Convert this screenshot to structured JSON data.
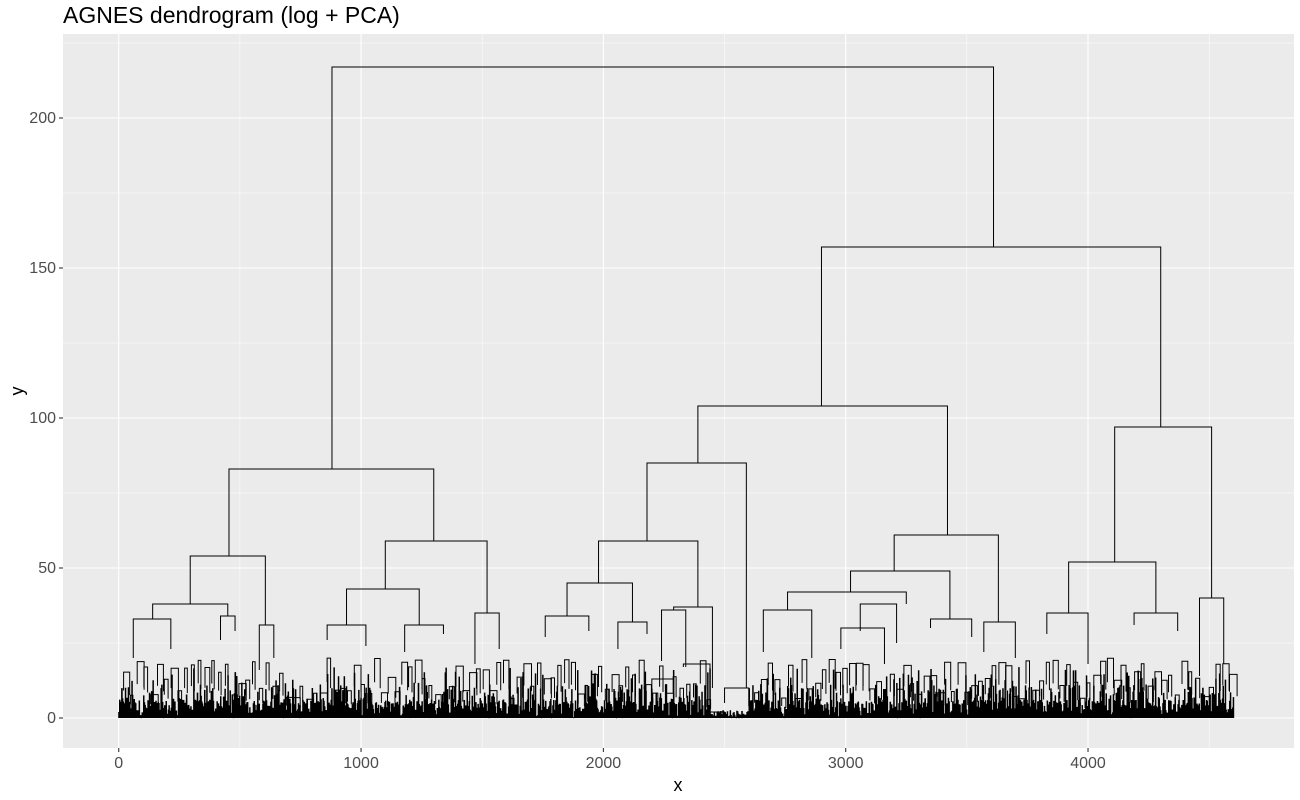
{
  "chart_data": {
    "type": "dendrogram",
    "title": "AGNES dendrogram (log + PCA)",
    "xlabel": "x",
    "ylabel": "y",
    "xlim": [
      -230,
      4850
    ],
    "ylim": [
      -10,
      228
    ],
    "x_ticks": [
      0,
      1000,
      2000,
      3000,
      4000
    ],
    "x_tick_labels": [
      "0",
      "1000",
      "2000",
      "3000",
      "4000"
    ],
    "y_ticks": [
      0,
      50,
      100,
      150,
      200
    ],
    "y_tick_labels": [
      "0",
      "50",
      "100",
      "150",
      "200"
    ],
    "n_leaves": 4600,
    "grid": true,
    "background": "#ebebeb",
    "line_color": "#000000",
    "links": [
      {
        "x1": 880,
        "x2": 3610,
        "y": 217,
        "y1": 83,
        "y2": 157
      },
      {
        "x1": 2900,
        "x2": 4300,
        "y": 157,
        "y1": 104,
        "y2": 97
      },
      {
        "x1": 2390,
        "x2": 3420,
        "y": 104,
        "y1": 85,
        "y2": 61
      },
      {
        "x1": 455,
        "x2": 1300,
        "y": 83,
        "y1": 54,
        "y2": 59
      },
      {
        "x1": 2180,
        "x2": 2590,
        "y": 85,
        "y1": 59,
        "y2": 10
      },
      {
        "x1": 4110,
        "x2": 4510,
        "y": 97,
        "y1": 52,
        "y2": 40
      },
      {
        "x1": 3200,
        "x2": 3630,
        "y": 61,
        "y1": 49,
        "y2": 32
      },
      {
        "x1": 1100,
        "x2": 1520,
        "y": 59,
        "y1": 43,
        "y2": 35
      },
      {
        "x1": 295,
        "x2": 605,
        "y": 54,
        "y1": 38,
        "y2": 31
      },
      {
        "x1": 1980,
        "x2": 2390,
        "y": 59,
        "y1": 45,
        "y2": 37
      },
      {
        "x1": 3920,
        "x2": 4280,
        "y": 52,
        "y1": 35,
        "y2": 35
      },
      {
        "x1": 3020,
        "x2": 3430,
        "y": 49,
        "y1": 42,
        "y2": 33
      },
      {
        "x1": 940,
        "x2": 1240,
        "y": 43,
        "y1": 31,
        "y2": 31
      },
      {
        "x1": 140,
        "x2": 450,
        "y": 38,
        "y1": 33,
        "y2": 34
      },
      {
        "x1": 1850,
        "x2": 2120,
        "y": 45,
        "y1": 34,
        "y2": 32
      },
      {
        "x1": 2760,
        "x2": 3250,
        "y": 42,
        "y1": 36,
        "y2": 38
      },
      {
        "x1": 3350,
        "x2": 3520,
        "y": 33,
        "y1": 30,
        "y2": 27
      },
      {
        "x1": 3570,
        "x2": 3700,
        "y": 32,
        "y1": 22,
        "y2": 20
      },
      {
        "x1": 4190,
        "x2": 4370,
        "y": 35,
        "y1": 31,
        "y2": 29
      },
      {
        "x1": 3830,
        "x2": 4000,
        "y": 35,
        "y1": 28,
        "y2": 18
      },
      {
        "x1": 4460,
        "x2": 4560,
        "y": 40,
        "y1": 14,
        "y2": 18
      },
      {
        "x1": 2290,
        "x2": 2450,
        "y": 37,
        "y1": 36,
        "y2": 10
      },
      {
        "x1": 2240,
        "x2": 2340,
        "y": 36,
        "y1": 19,
        "y2": 17
      },
      {
        "x1": 2330,
        "x2": 2440,
        "y": 18,
        "y1": 17,
        "y2": 11
      },
      {
        "x1": 2200,
        "x2": 2290,
        "y": 13,
        "y1": 9,
        "y2": 9
      },
      {
        "x1": 1470,
        "x2": 1570,
        "y": 35,
        "y1": 18,
        "y2": 23
      },
      {
        "x1": 1180,
        "x2": 1340,
        "y": 31,
        "y1": 22,
        "y2": 28
      },
      {
        "x1": 860,
        "x2": 1020,
        "y": 31,
        "y1": 26,
        "y2": 24
      },
      {
        "x1": 60,
        "x2": 215,
        "y": 33,
        "y1": 20,
        "y2": 23
      },
      {
        "x1": 420,
        "x2": 480,
        "y": 34,
        "y1": 26,
        "y2": 29
      },
      {
        "x1": 580,
        "x2": 640,
        "y": 31,
        "y1": 16,
        "y2": 20
      },
      {
        "x1": 1760,
        "x2": 1940,
        "y": 34,
        "y1": 27,
        "y2": 29
      },
      {
        "x1": 2060,
        "x2": 2180,
        "y": 32,
        "y1": 23,
        "y2": 28
      },
      {
        "x1": 2660,
        "x2": 2860,
        "y": 36,
        "y1": 22,
        "y2": 20
      },
      {
        "x1": 3060,
        "x2": 3210,
        "y": 38,
        "y1": 29,
        "y2": 25
      },
      {
        "x1": 2980,
        "x2": 3160,
        "y": 30,
        "y1": 23,
        "y2": 18
      },
      {
        "x1": 2500,
        "x2": 2600,
        "y": 10,
        "y1": 5,
        "y2": 4
      },
      {
        "x1": 2420,
        "x2": 2500,
        "y": 2,
        "y1": 1,
        "y2": 1
      }
    ]
  }
}
